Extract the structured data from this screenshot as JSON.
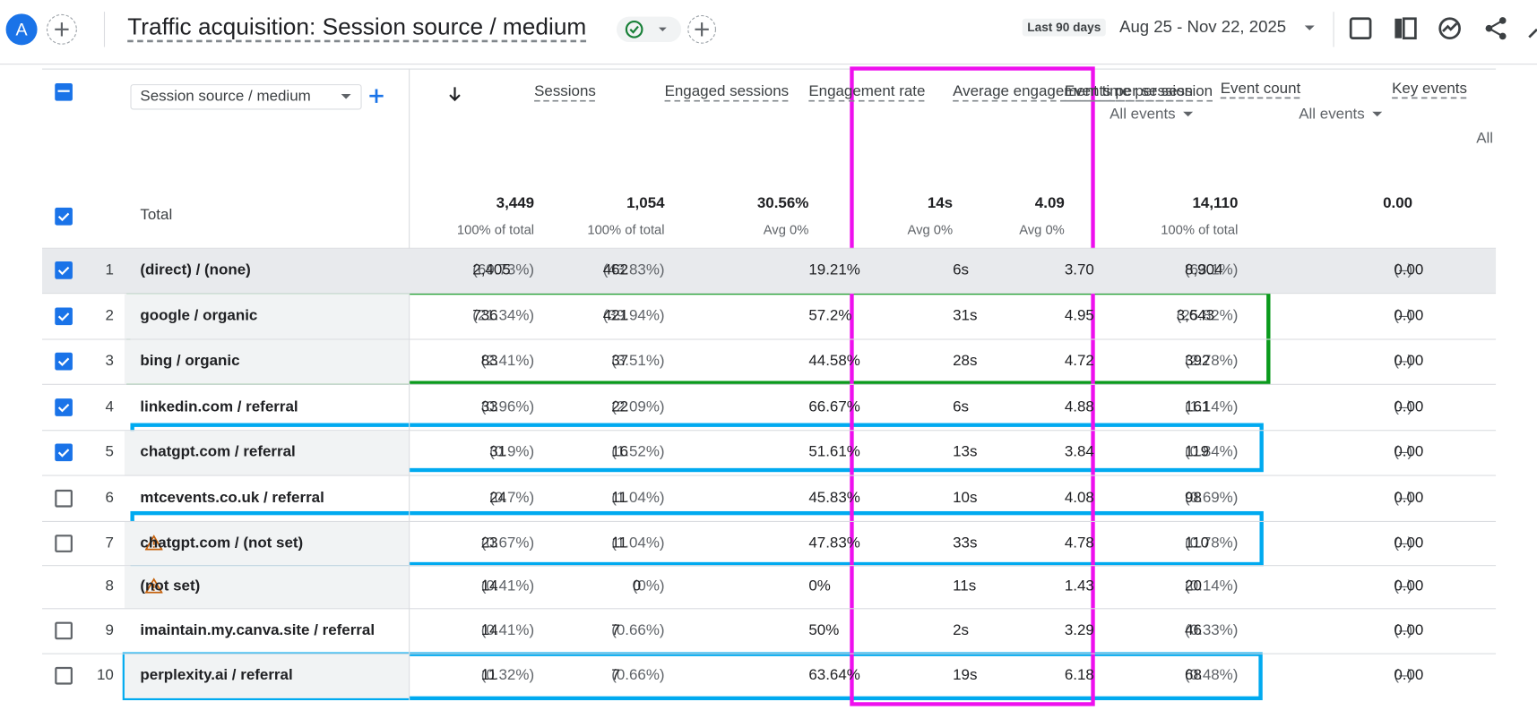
{
  "header": {
    "avatar": "A",
    "title": "Traffic acquisition: Session source / medium",
    "date_label": "Last 90 days",
    "date_range": "Aug 25 - Nov 22, 2025"
  },
  "table": {
    "dimension": "Session source / medium",
    "columns": [
      {
        "label": "Sessions"
      },
      {
        "label": "Engaged sessions"
      },
      {
        "label": "Engagement rate"
      },
      {
        "label": "Average engagement time per session"
      },
      {
        "label": "Events per session"
      },
      {
        "label": "Event count",
        "filter": "All events"
      },
      {
        "label": "Key events",
        "filter": "All events"
      }
    ],
    "extra_column": "All",
    "total": {
      "label": "Total",
      "values": [
        "3,449",
        "1,054",
        "30.56%",
        "14s",
        "4.09",
        "14,110",
        "0.00"
      ],
      "notes": [
        "100% of total",
        "100% of total",
        "Avg 0%",
        "Avg 0%",
        "Avg 0%",
        "100% of total"
      ]
    },
    "rows": [
      {
        "index": "1",
        "checked": true,
        "name": "(direct) / (none)",
        "cells": [
          [
            "2,405",
            "(69.73%)"
          ],
          [
            "462",
            "(43.83%)"
          ],
          [
            "19.21%"
          ],
          [
            "6s"
          ],
          [
            "3.70"
          ],
          [
            "8,904",
            "(63.1%)"
          ],
          [
            "0.00",
            "(–)"
          ]
        ]
      },
      {
        "index": "2",
        "checked": true,
        "name": "google / organic",
        "cells": [
          [
            "736",
            "(21.34%)"
          ],
          [
            "421",
            "(39.94%)"
          ],
          [
            "57.2%"
          ],
          [
            "31s"
          ],
          [
            "4.95"
          ],
          [
            "3,643",
            "(25.82%)"
          ],
          [
            "0.00",
            "(–)"
          ]
        ]
      },
      {
        "index": "3",
        "checked": true,
        "name": "bing / organic",
        "cells": [
          [
            "83",
            "(2.41%)"
          ],
          [
            "37",
            "(3.51%)"
          ],
          [
            "44.58%"
          ],
          [
            "28s"
          ],
          [
            "4.72"
          ],
          [
            "392",
            "(2.78%)"
          ],
          [
            "0.00",
            "(–)"
          ]
        ]
      },
      {
        "index": "4",
        "checked": true,
        "name": "linkedin.com / referral",
        "cells": [
          [
            "33",
            "(0.96%)"
          ],
          [
            "22",
            "(2.09%)"
          ],
          [
            "66.67%"
          ],
          [
            "6s"
          ],
          [
            "4.88"
          ],
          [
            "161",
            "(1.14%)"
          ],
          [
            "0.00",
            "(–)"
          ]
        ]
      },
      {
        "index": "5",
        "checked": true,
        "name": "chatgpt.com / referral",
        "cells": [
          [
            "31",
            "(0.9%)"
          ],
          [
            "16",
            "(1.52%)"
          ],
          [
            "51.61%"
          ],
          [
            "13s"
          ],
          [
            "3.84"
          ],
          [
            "119",
            "(0.84%)"
          ],
          [
            "0.00",
            "(–)"
          ]
        ]
      },
      {
        "index": "6",
        "checked": false,
        "name": "mtcevents.co.uk / referral",
        "cells": [
          [
            "24",
            "(0.7%)"
          ],
          [
            "11",
            "(1.04%)"
          ],
          [
            "45.83%"
          ],
          [
            "10s"
          ],
          [
            "4.08"
          ],
          [
            "98",
            "(0.69%)"
          ],
          [
            "0.00",
            "(–)"
          ]
        ]
      },
      {
        "index": "7",
        "checked": false,
        "warning": true,
        "name": "chatgpt.com / (not set)",
        "cells": [
          [
            "23",
            "(0.67%)"
          ],
          [
            "11",
            "(1.04%)"
          ],
          [
            "47.83%"
          ],
          [
            "33s"
          ],
          [
            "4.78"
          ],
          [
            "110",
            "(0.78%)"
          ],
          [
            "0.00",
            "(–)"
          ]
        ]
      },
      {
        "index": "8",
        "checked": null,
        "warning": true,
        "name": "(not set)",
        "cells": [
          [
            "14",
            "(0.41%)"
          ],
          [
            "0",
            "(0%)"
          ],
          [
            "0%"
          ],
          [
            "11s"
          ],
          [
            "1.43"
          ],
          [
            "20",
            "(0.14%)"
          ],
          [
            "0.00",
            "(–)"
          ]
        ]
      },
      {
        "index": "9",
        "checked": false,
        "name": "imaintain.my.canva.site / referral",
        "cells": [
          [
            "14",
            "(0.41%)"
          ],
          [
            "7",
            "(0.66%)"
          ],
          [
            "50%"
          ],
          [
            "2s"
          ],
          [
            "3.29"
          ],
          [
            "46",
            "(0.33%)"
          ],
          [
            "0.00",
            "(–)"
          ]
        ]
      },
      {
        "index": "10",
        "checked": false,
        "name": "perplexity.ai / referral",
        "cells": [
          [
            "11",
            "(0.32%)"
          ],
          [
            "7",
            "(0.66%)"
          ],
          [
            "63.64%"
          ],
          [
            "19s"
          ],
          [
            "6.18"
          ],
          [
            "68",
            "(0.48%)"
          ],
          [
            "0.00",
            "(–)"
          ]
        ]
      }
    ]
  }
}
